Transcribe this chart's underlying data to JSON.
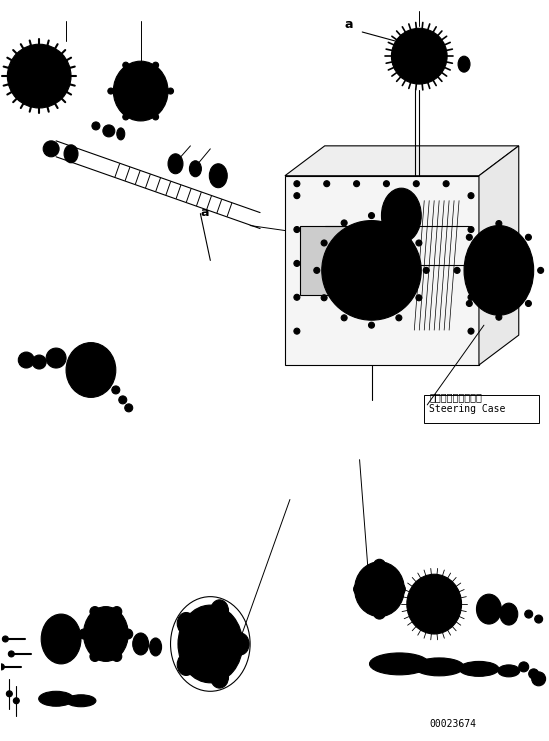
{
  "background_color": "#ffffff",
  "figsize": [
    5.49,
    7.41
  ],
  "dpi": 100,
  "label_a_left": "a",
  "label_a_right": "a",
  "steering_case_jp": "ステアリングケース",
  "steering_case_en": "Steering Case",
  "part_number": "00023674",
  "line_color": "#000000",
  "line_width": 0.8,
  "text_color": "#000000",
  "annotation_fontsize": 7,
  "part_number_fontsize": 7,
  "steering_case_fontsize": 7
}
